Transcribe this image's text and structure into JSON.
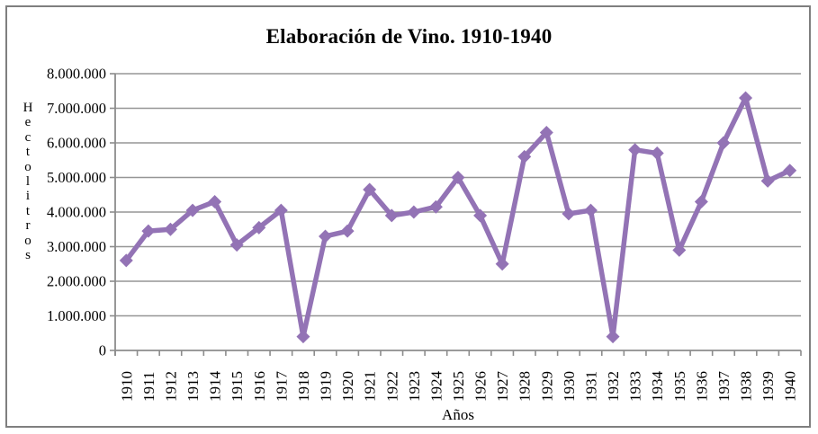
{
  "window": {
    "background_color": "#ffffff",
    "frame_border_color": "#7f7f7f"
  },
  "chart_data": {
    "type": "line",
    "title": "Elaboración de Vino. 1910-1940",
    "xlabel": "Años",
    "ylabel": "Hectolitros",
    "categories": [
      "1910",
      "1911",
      "1912",
      "1913",
      "1914",
      "1915",
      "1916",
      "1917",
      "1918",
      "1919",
      "1920",
      "1921",
      "1922",
      "1923",
      "1924",
      "1925",
      "1926",
      "1927",
      "1928",
      "1929",
      "1930",
      "1931",
      "1932",
      "1933",
      "1934",
      "1935",
      "1936",
      "1937",
      "1938",
      "1939",
      "1940"
    ],
    "values": [
      2600000,
      3450000,
      3500000,
      4050000,
      4300000,
      3050000,
      3550000,
      4050000,
      400000,
      3300000,
      3450000,
      4650000,
      3900000,
      4000000,
      4150000,
      5000000,
      3900000,
      2500000,
      5600000,
      6300000,
      3950000,
      4050000,
      400000,
      5800000,
      5700000,
      2900000,
      4300000,
      6000000,
      7300000,
      4900000,
      5200000
    ],
    "ylim": [
      0,
      8000000
    ],
    "y_tick_step": 1000000,
    "y_tick_labels": [
      "0",
      "1.000.000",
      "2.000.000",
      "3.000.000",
      "4.000.000",
      "5.000.000",
      "6.000.000",
      "7.000.000",
      "8.000.000"
    ],
    "grid": true,
    "legend": "none",
    "marker": "diamond",
    "line_color": "#9373b5",
    "grid_color": "#969696",
    "axis_color": "#8c8c8c",
    "text_color": "#000000"
  }
}
